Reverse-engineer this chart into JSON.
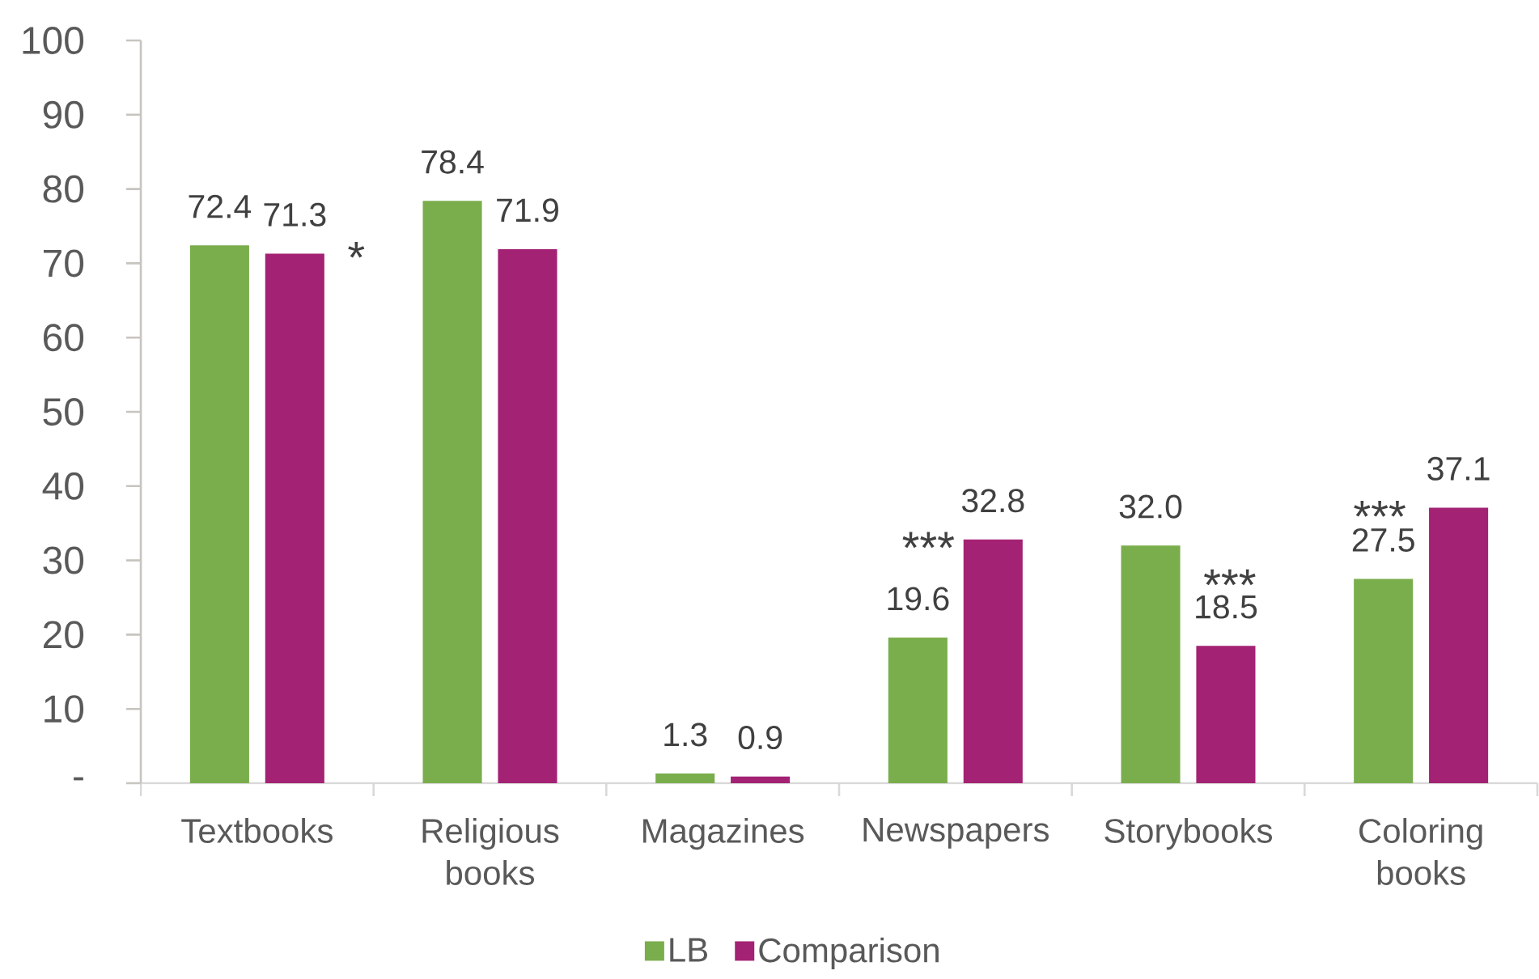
{
  "chart_data": {
    "type": "bar",
    "categories": [
      "Textbooks",
      "Religious books",
      "Magazines",
      "Newspapers",
      "Storybooks",
      "Coloring books"
    ],
    "series": [
      {
        "name": "LB",
        "color": "#7aad4c",
        "values": [
          72.4,
          78.4,
          1.3,
          19.6,
          32.0,
          27.5
        ],
        "value_labels": [
          "72.4",
          "78.4",
          "1.3",
          "19.6",
          "32.0",
          "27.5"
        ]
      },
      {
        "name": "Comparison",
        "color": "#a32273",
        "values": [
          71.3,
          71.9,
          0.9,
          32.8,
          18.5,
          37.1
        ],
        "value_labels": [
          "71.3",
          "71.9",
          "0.9",
          "32.8",
          "18.5",
          "37.1"
        ]
      }
    ],
    "ylim": [
      0,
      100
    ],
    "yticks": [
      {
        "value": 0,
        "label": "-"
      },
      10,
      20,
      30,
      40,
      50,
      60,
      70,
      80,
      90,
      100
    ],
    "annotations": [
      "*",
      "***",
      "***",
      "***"
    ],
    "legend": "bottom"
  }
}
